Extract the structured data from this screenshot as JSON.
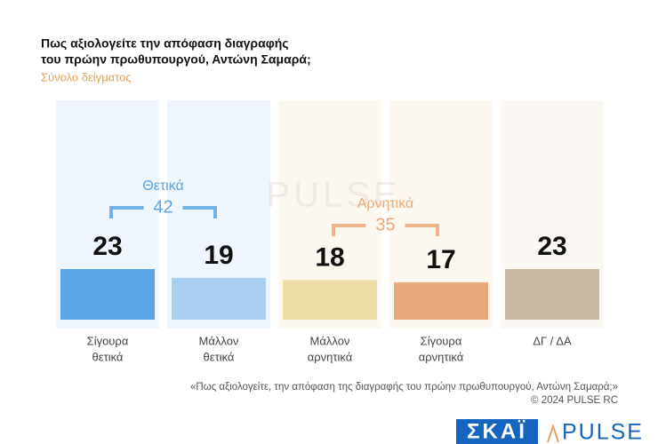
{
  "chart_data": {
    "type": "bar",
    "title": [
      "Πως αξιολογείτε  την απόφαση διαγραφής",
      "του πρώην πρωθυπουργού, Αντώνη Σαμαρά;"
    ],
    "subtitle": "Σύνολο δείγματος",
    "categories": [
      [
        "Σίγουρα",
        "θετικά"
      ],
      [
        "Μάλλον",
        "θετικά"
      ],
      [
        "Μάλλον",
        "αρνητικά"
      ],
      [
        "Σίγουρα",
        "αρνητικά"
      ],
      [
        "ΔΓ / ΔΑ"
      ]
    ],
    "values": [
      23,
      19,
      18,
      17,
      23
    ],
    "colors": [
      "#5ba4e5",
      "#a9cff2",
      "#efdfa6",
      "#e9a97a",
      "#c9b9a3"
    ],
    "groups": [
      {
        "name": "Θετικά",
        "value": 42,
        "color": "#5ba4e5"
      },
      {
        "name": "Αρνητικά",
        "value": 35,
        "color": "#e9a97a"
      }
    ],
    "watermark": "PULSE",
    "footnote": "«Πως αξιολογείτε, την απόφαση της διαγραφής του πρώην πρωθυπουργού, Αντώνη Σαμαρά;»",
    "copyright": "©  2024  PULSE RC",
    "logos": [
      "ΣΚΑΪ",
      "PULSE"
    ]
  }
}
